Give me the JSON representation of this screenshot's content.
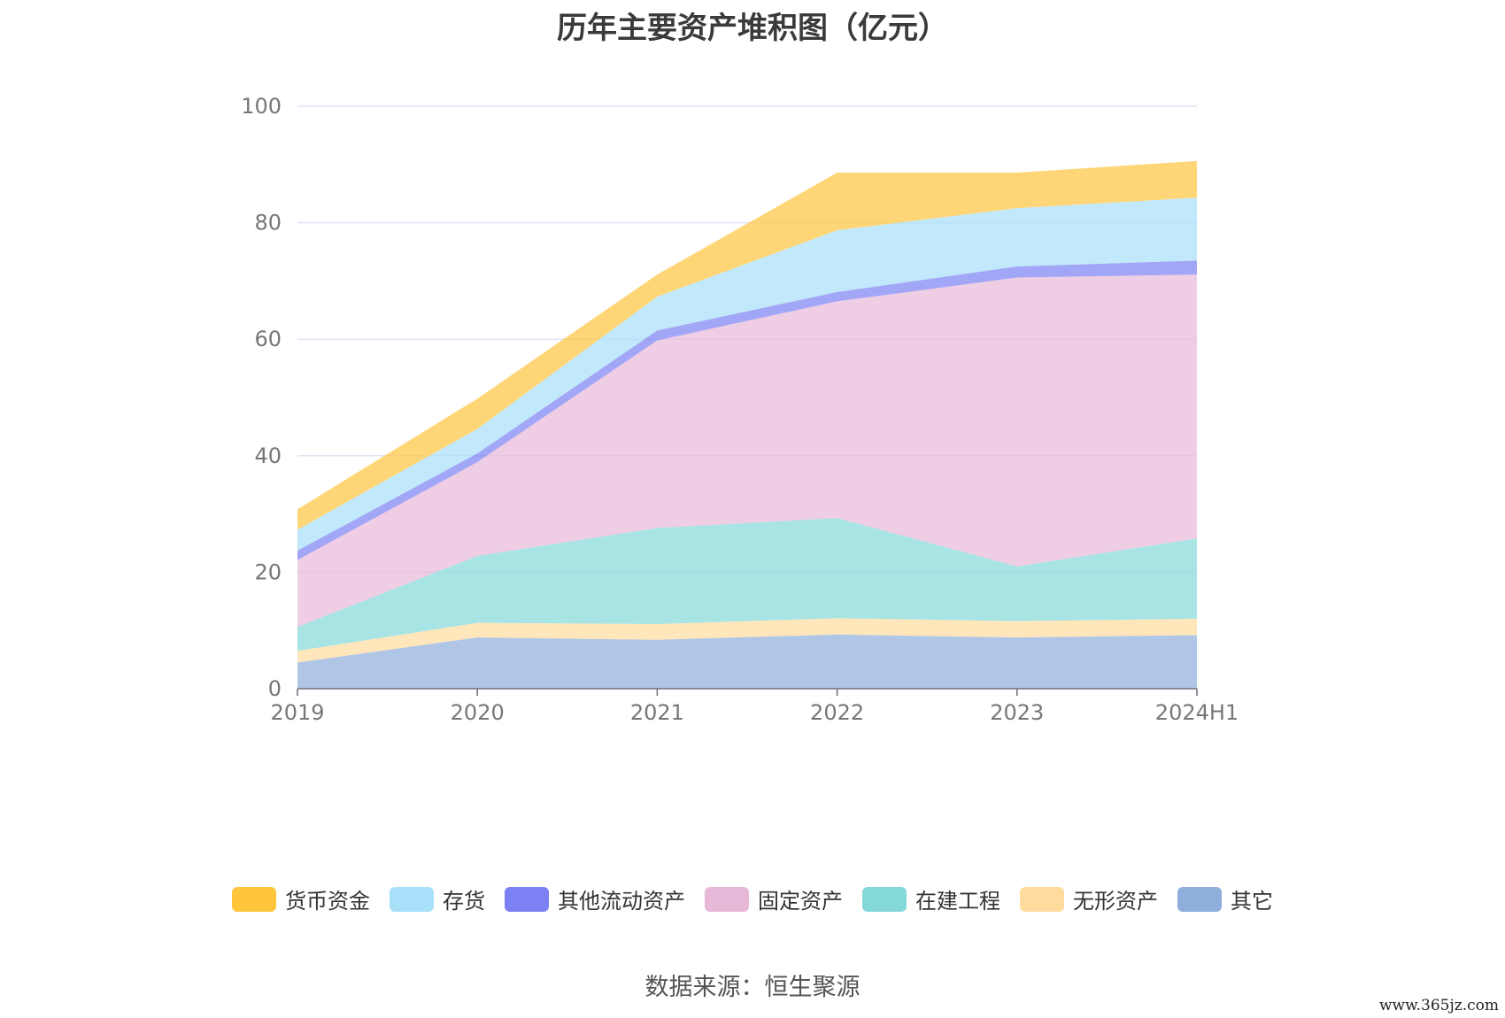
{
  "chart_data": {
    "type": "area",
    "stacked": true,
    "title": "历年主要资产堆积图（亿元）",
    "categories": [
      "2019",
      "2020",
      "2021",
      "2022",
      "2023",
      "2024H1"
    ],
    "ylim": [
      0,
      100
    ],
    "yticks": [
      "0",
      "20",
      "40",
      "60",
      "80",
      "100"
    ],
    "grid": true,
    "legend_position": "bottom",
    "series": [
      {
        "name": "其它",
        "color": "#8eaedc",
        "values": [
          4.5,
          8.8,
          8.4,
          9.3,
          8.8,
          9.2
        ]
      },
      {
        "name": "无形资产",
        "color": "#ffdc9e",
        "values": [
          2.0,
          2.5,
          2.7,
          2.8,
          2.8,
          2.8
        ]
      },
      {
        "name": "在建工程",
        "color": "#85d8d8",
        "values": [
          4.1,
          11.5,
          16.5,
          17.2,
          9.4,
          13.8
        ]
      },
      {
        "name": "固定资产",
        "color": "#e8b8d8",
        "values": [
          11.5,
          16.1,
          32.2,
          37.2,
          49.6,
          45.3
        ]
      },
      {
        "name": "其他流动资产",
        "color": "#7b80f2",
        "values": [
          1.6,
          1.5,
          1.7,
          1.6,
          1.9,
          2.4
        ]
      },
      {
        "name": "存货",
        "color": "#a8e0fa",
        "values": [
          3.6,
          4.2,
          5.8,
          10.6,
          10.0,
          10.8
        ]
      },
      {
        "name": "货币资金",
        "color": "#ffc53d",
        "values": [
          3.5,
          5.2,
          3.8,
          9.9,
          6.1,
          6.3
        ]
      }
    ]
  },
  "legend_order": [
    "货币资金",
    "存货",
    "其他流动资产",
    "固定资产",
    "在建工程",
    "无形资产",
    "其它"
  ],
  "source": "数据来源：恒生聚源",
  "watermark": "www.365jz.com"
}
